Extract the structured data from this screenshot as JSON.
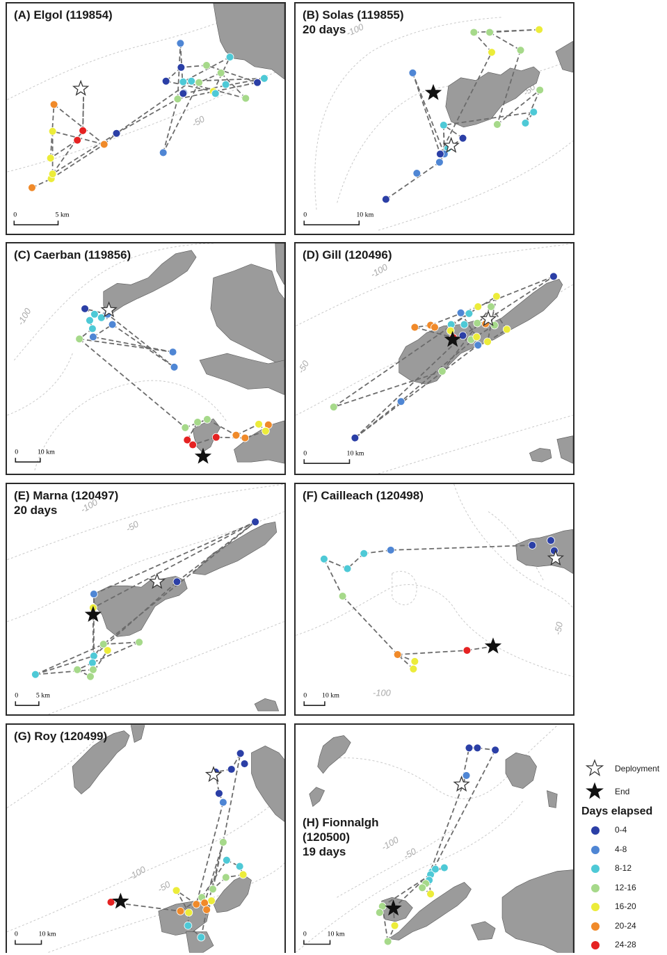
{
  "panels": [
    {
      "title": "(A) Elgol (119854)",
      "subtitle": "",
      "scale_label": "5 km",
      "scale_zero": "0",
      "isobaths": [
        "-50"
      ]
    },
    {
      "title": "(B) Solas (119855)",
      "subtitle": "20 days",
      "scale_label": "10 km",
      "scale_zero": "0",
      "isobaths": [
        "-100",
        "-50"
      ]
    },
    {
      "title": "(C) Caerban (119856)",
      "subtitle": "",
      "scale_label": "10 km",
      "scale_zero": "0",
      "isobaths": [
        "-100"
      ]
    },
    {
      "title": "(D) Gill (120496)",
      "subtitle": "",
      "scale_label": "10 km",
      "scale_zero": "0",
      "isobaths": [
        "-100",
        "-50"
      ]
    },
    {
      "title": "(E) Marna (120497)",
      "subtitle": "20 days",
      "scale_label": "5 km",
      "scale_zero": "0",
      "isobaths": [
        "-100",
        "-50"
      ]
    },
    {
      "title": "(F) Cailleach (120498)",
      "subtitle": "",
      "scale_label": "10 km",
      "scale_zero": "0",
      "isobaths": [
        "-50",
        "-100"
      ]
    },
    {
      "title": "(G) Roy (120499)",
      "subtitle": "",
      "scale_label": "10 km",
      "scale_zero": "0",
      "isobaths": [
        "-100",
        "-50"
      ]
    },
    {
      "title": "(H) Fionnalgh",
      "subtitle": "(120500)",
      "subtitle2": "19 days",
      "scale_label": "10 km",
      "scale_zero": "0",
      "isobaths": [
        "-100",
        "-50"
      ]
    }
  ],
  "legend": {
    "deployment": "Deployment",
    "end": "End",
    "heading": "Days elapsed",
    "classes": [
      {
        "label": "0-4",
        "color": "#2b3fa6"
      },
      {
        "label": "4-8",
        "color": "#4f86d4"
      },
      {
        "label": "8-12",
        "color": "#4ec9d6"
      },
      {
        "label": "12-16",
        "color": "#a6d98a"
      },
      {
        "label": "16-20",
        "color": "#ecec3a"
      },
      {
        "label": "20-24",
        "color": "#f08a2a"
      },
      {
        "label": "24-28",
        "color": "#e52222"
      }
    ]
  },
  "land_color": "#9b9b9b",
  "track_color": "#6b6b6b"
}
